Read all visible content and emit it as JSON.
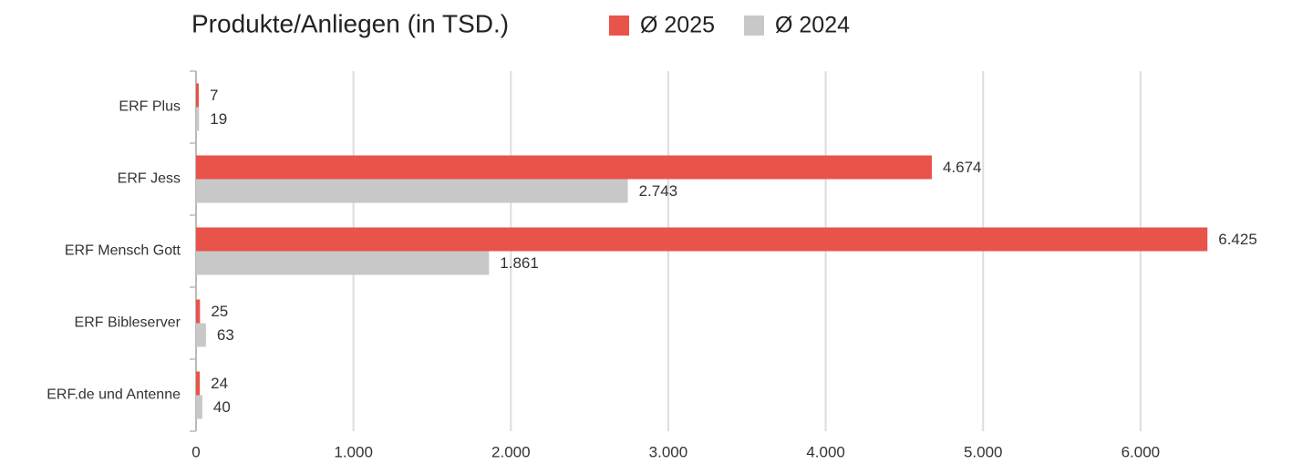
{
  "chart_data": {
    "type": "hbar",
    "title": "Produkte/Anliegen (in TSD.)",
    "categories": [
      "ERF Plus",
      "ERF Jess",
      "ERF Mensch Gott",
      "ERF Bibleserver",
      "ERF.de und Antenne"
    ],
    "series": [
      {
        "name": "Ø 2025",
        "color": "#e8534a",
        "values": [
          7,
          4674,
          6425,
          25,
          24
        ],
        "value_labels": [
          "7",
          "4.674",
          "6.425",
          "25",
          "24"
        ]
      },
      {
        "name": "Ø 2024",
        "color": "#c8c8c8",
        "values": [
          19,
          2743,
          1861,
          63,
          40
        ],
        "value_labels": [
          "19",
          "2.743",
          "1.861",
          "63",
          "40"
        ]
      }
    ],
    "xlim": [
      0,
      6800
    ],
    "xticks": [
      0,
      {
        "value": 1000,
        "label": "1.000"
      },
      {
        "value": 2000,
        "label": "2.000"
      },
      {
        "value": 3000,
        "label": "3.000"
      },
      {
        "value": 4000,
        "label": "4.000"
      },
      {
        "value": 5000,
        "label": "5.000"
      },
      {
        "value": 6000,
        "label": "6.000"
      }
    ],
    "grid": true
  }
}
